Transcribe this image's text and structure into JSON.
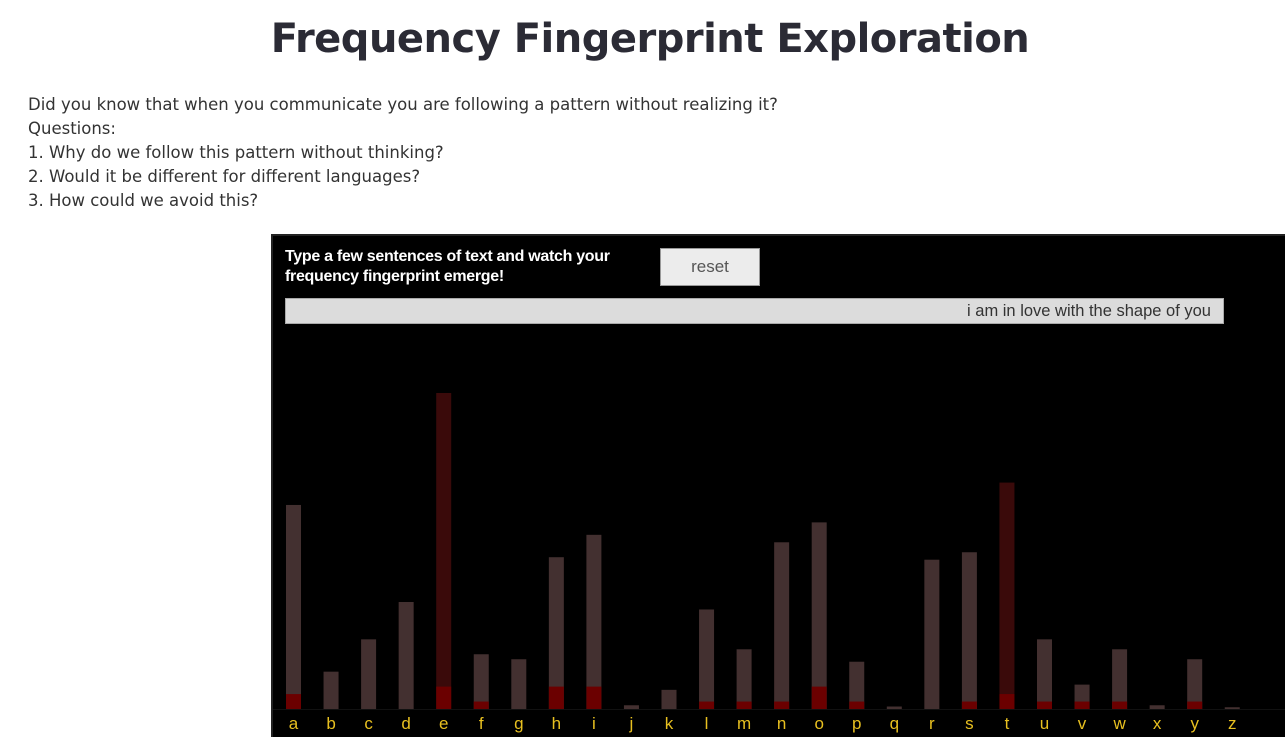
{
  "page": {
    "title": "Frequency Fingerprint Exploration",
    "intro": [
      "Did you know that when you communicate you are following a pattern without realizing it?",
      "Questions:",
      "1. Why do we follow this pattern without thinking?",
      "2. Would it be different for different languages?",
      "3. How could we avoid this?"
    ]
  },
  "app": {
    "instructions": "Type a few sentences of text and watch your frequency fingerprint emerge!",
    "reset_label": "reset",
    "input_value": "i am in love with the shape of you"
  },
  "colors": {
    "background": "#000000",
    "bar_default": "#433030",
    "bar_high": "#3a0a0a",
    "bar_current": "#6b0000",
    "label": "#e8c020"
  },
  "chart_data": {
    "type": "bar",
    "categories": [
      "a",
      "b",
      "c",
      "d",
      "e",
      "f",
      "g",
      "h",
      "i",
      "j",
      "k",
      "l",
      "m",
      "n",
      "o",
      "p",
      "q",
      "r",
      "s",
      "t",
      "u",
      "v",
      "w",
      "x",
      "y",
      "z"
    ],
    "series": [
      {
        "values": [
          8.2,
          1.5,
          2.8,
          4.3,
          12.7,
          2.2,
          2.0,
          6.1,
          7.0,
          0.15,
          0.77,
          4.0,
          2.4,
          6.7,
          7.5,
          1.9,
          0.1,
          6.0,
          6.3,
          9.1,
          2.8,
          0.98,
          2.4,
          0.15,
          2.0,
          0.07
        ]
      },
      {
        "values": [
          0.6,
          0,
          0,
          0,
          0.9,
          0.3,
          0,
          0.9,
          0.9,
          0,
          0,
          0.3,
          0.3,
          0.3,
          0.9,
          0.3,
          0,
          0,
          0.3,
          0.6,
          0.3,
          0.3,
          0.3,
          0,
          0.3,
          0
        ]
      }
    ],
    "ymax": 12.7,
    "highlight_threshold": 9
  }
}
